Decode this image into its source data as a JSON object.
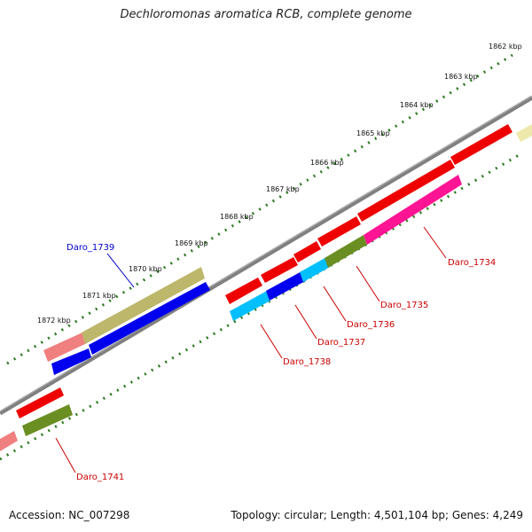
{
  "title": "Dechloromonas aromatica RCB, complete genome",
  "footer": {
    "accession": "Accession: NC_007298",
    "summary": "Topology: circular; Length: 4,501,104 bp; Genes: 4,249"
  },
  "ticks": [
    "1862 kbp",
    "1863 kbp",
    "1864 kbp",
    "1865 kbp",
    "1866 kbp",
    "1867 kbp",
    "1868 kbp",
    "1869 kbp",
    "1870 kbp",
    "1871 kbp",
    "1872 kbp"
  ],
  "gene_labels": {
    "daro_1734": "Daro_1734",
    "daro_1735": "Daro_1735",
    "daro_1736": "Daro_1736",
    "daro_1737": "Daro_1737",
    "daro_1738": "Daro_1738",
    "daro_1739": "Daro_1739",
    "daro_1741": "Daro_1741"
  },
  "colors": {
    "backbone": "#808080",
    "tick_dots": "#2a7a1e",
    "label_red": "#cc0000",
    "label_blue": "#0000cc",
    "red": "#ee0000",
    "salmon": "#f08080",
    "khaki": "#bdb76b",
    "blue": "#0000ee",
    "cyan": "#00bfff",
    "olive": "#6b8e23",
    "magenta": "#ff1493",
    "pale_yellow": "#eee8aa"
  }
}
